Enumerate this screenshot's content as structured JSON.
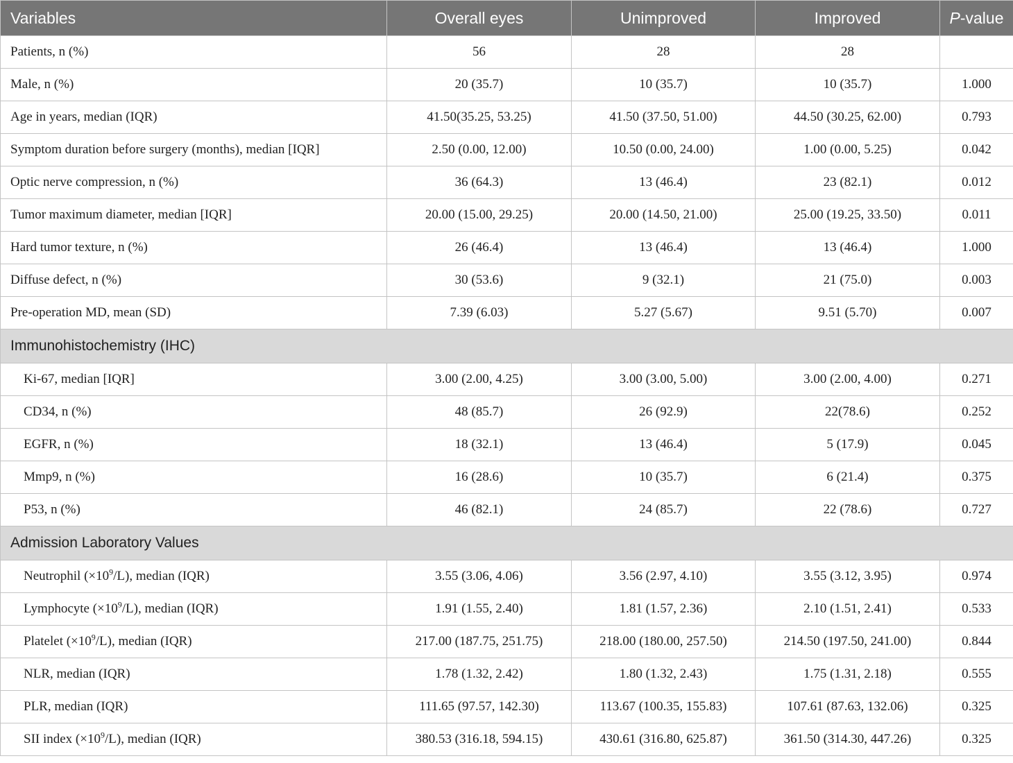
{
  "header": {
    "variables": "Variables",
    "overall": "Overall eyes",
    "unimproved": "Unimproved",
    "improved": "Improved",
    "pvalue_p": "P",
    "pvalue_rest": "-value"
  },
  "rows_main": [
    {
      "label": "Patients, n (%)",
      "overall": "56",
      "unimproved": "28",
      "improved": "28",
      "p": ""
    },
    {
      "label": "Male, n (%)",
      "overall": "20 (35.7)",
      "unimproved": "10 (35.7)",
      "improved": "10 (35.7)",
      "p": "1.000"
    },
    {
      "label": "Age in years, median (IQR)",
      "overall": "41.50(35.25, 53.25)",
      "unimproved": "41.50 (37.50, 51.00)",
      "improved": "44.50 (30.25, 62.00)",
      "p": "0.793"
    },
    {
      "label": "Symptom duration before surgery (months), median [IQR]",
      "overall": "2.50 (0.00, 12.00)",
      "unimproved": "10.50 (0.00, 24.00)",
      "improved": "1.00 (0.00, 5.25)",
      "p": "0.042"
    },
    {
      "label": "Optic nerve compression, n (%)",
      "overall": "36 (64.3)",
      "unimproved": "13 (46.4)",
      "improved": "23 (82.1)",
      "p": "0.012"
    },
    {
      "label": "Tumor maximum diameter, median [IQR]",
      "overall": "20.00 (15.00, 29.25)",
      "unimproved": "20.00 (14.50, 21.00)",
      "improved": "25.00 (19.25, 33.50)",
      "p": "0.011"
    },
    {
      "label": "Hard tumor texture, n (%)",
      "overall": "26 (46.4)",
      "unimproved": "13 (46.4)",
      "improved": "13 (46.4)",
      "p": "1.000"
    },
    {
      "label": "Diffuse defect, n (%)",
      "overall": "30 (53.6)",
      "unimproved": "9 (32.1)",
      "improved": "21 (75.0)",
      "p": "0.003"
    },
    {
      "label": "Pre-operation MD, mean (SD)",
      "overall": "7.39 (6.03)",
      "unimproved": "5.27 (5.67)",
      "improved": "9.51 (5.70)",
      "p": "0.007"
    }
  ],
  "section_ihc": "Immunohistochemistry (IHC)",
  "rows_ihc": [
    {
      "label": "Ki-67, median [IQR]",
      "overall": "3.00 (2.00, 4.25)",
      "unimproved": "3.00 (3.00, 5.00)",
      "improved": "3.00 (2.00, 4.00)",
      "p": "0.271"
    },
    {
      "label": "CD34, n (%)",
      "overall": "48 (85.7)",
      "unimproved": "26 (92.9)",
      "improved": "22(78.6)",
      "p": "0.252"
    },
    {
      "label": "EGFR, n (%)",
      "overall": "18 (32.1)",
      "unimproved": "13 (46.4)",
      "improved": "5 (17.9)",
      "p": "0.045"
    },
    {
      "label": "Mmp9, n (%)",
      "overall": "16 (28.6)",
      "unimproved": "10 (35.7)",
      "improved": "6 (21.4)",
      "p": "0.375"
    },
    {
      "label": "P53, n (%)",
      "overall": "46 (82.1)",
      "unimproved": "24 (85.7)",
      "improved": "22 (78.6)",
      "p": "0.727"
    }
  ],
  "section_lab": "Admission Laboratory Values",
  "rows_lab": [
    {
      "pre": "Neutrophil (×10",
      "sup": "9",
      "post": "/L), median (IQR)",
      "overall": "3.55 (3.06, 4.06)",
      "unimproved": "3.56 (2.97, 4.10)",
      "improved": "3.55 (3.12, 3.95)",
      "p": "0.974"
    },
    {
      "pre": "Lymphocyte (×10",
      "sup": "9",
      "post": "/L), median (IQR)",
      "overall": "1.91 (1.55, 2.40)",
      "unimproved": "1.81 (1.57, 2.36)",
      "improved": "2.10 (1.51, 2.41)",
      "p": "0.533"
    },
    {
      "pre": "Platelet (×10",
      "sup": "9",
      "post": "/L), median (IQR)",
      "overall": "217.00 (187.75, 251.75)",
      "unimproved": "218.00 (180.00, 257.50)",
      "improved": "214.50 (197.50, 241.00)",
      "p": "0.844"
    },
    {
      "pre": "NLR, median (IQR)",
      "sup": "",
      "post": "",
      "overall": "1.78 (1.32, 2.42)",
      "unimproved": "1.80 (1.32, 2.43)",
      "improved": "1.75 (1.31, 2.18)",
      "p": "0.555"
    },
    {
      "pre": "PLR, median (IQR)",
      "sup": "",
      "post": "",
      "overall": "111.65 (97.57, 142.30)",
      "unimproved": "113.67 (100.35, 155.83)",
      "improved": "107.61 (87.63, 132.06)",
      "p": "0.325"
    },
    {
      "pre": "SII index (×10",
      "sup": "9",
      "post": "/L), median (IQR)",
      "overall": "380.53 (316.18, 594.15)",
      "unimproved": "430.61 (316.80, 625.87)",
      "improved": "361.50 (314.30, 447.26)",
      "p": "0.325"
    }
  ]
}
